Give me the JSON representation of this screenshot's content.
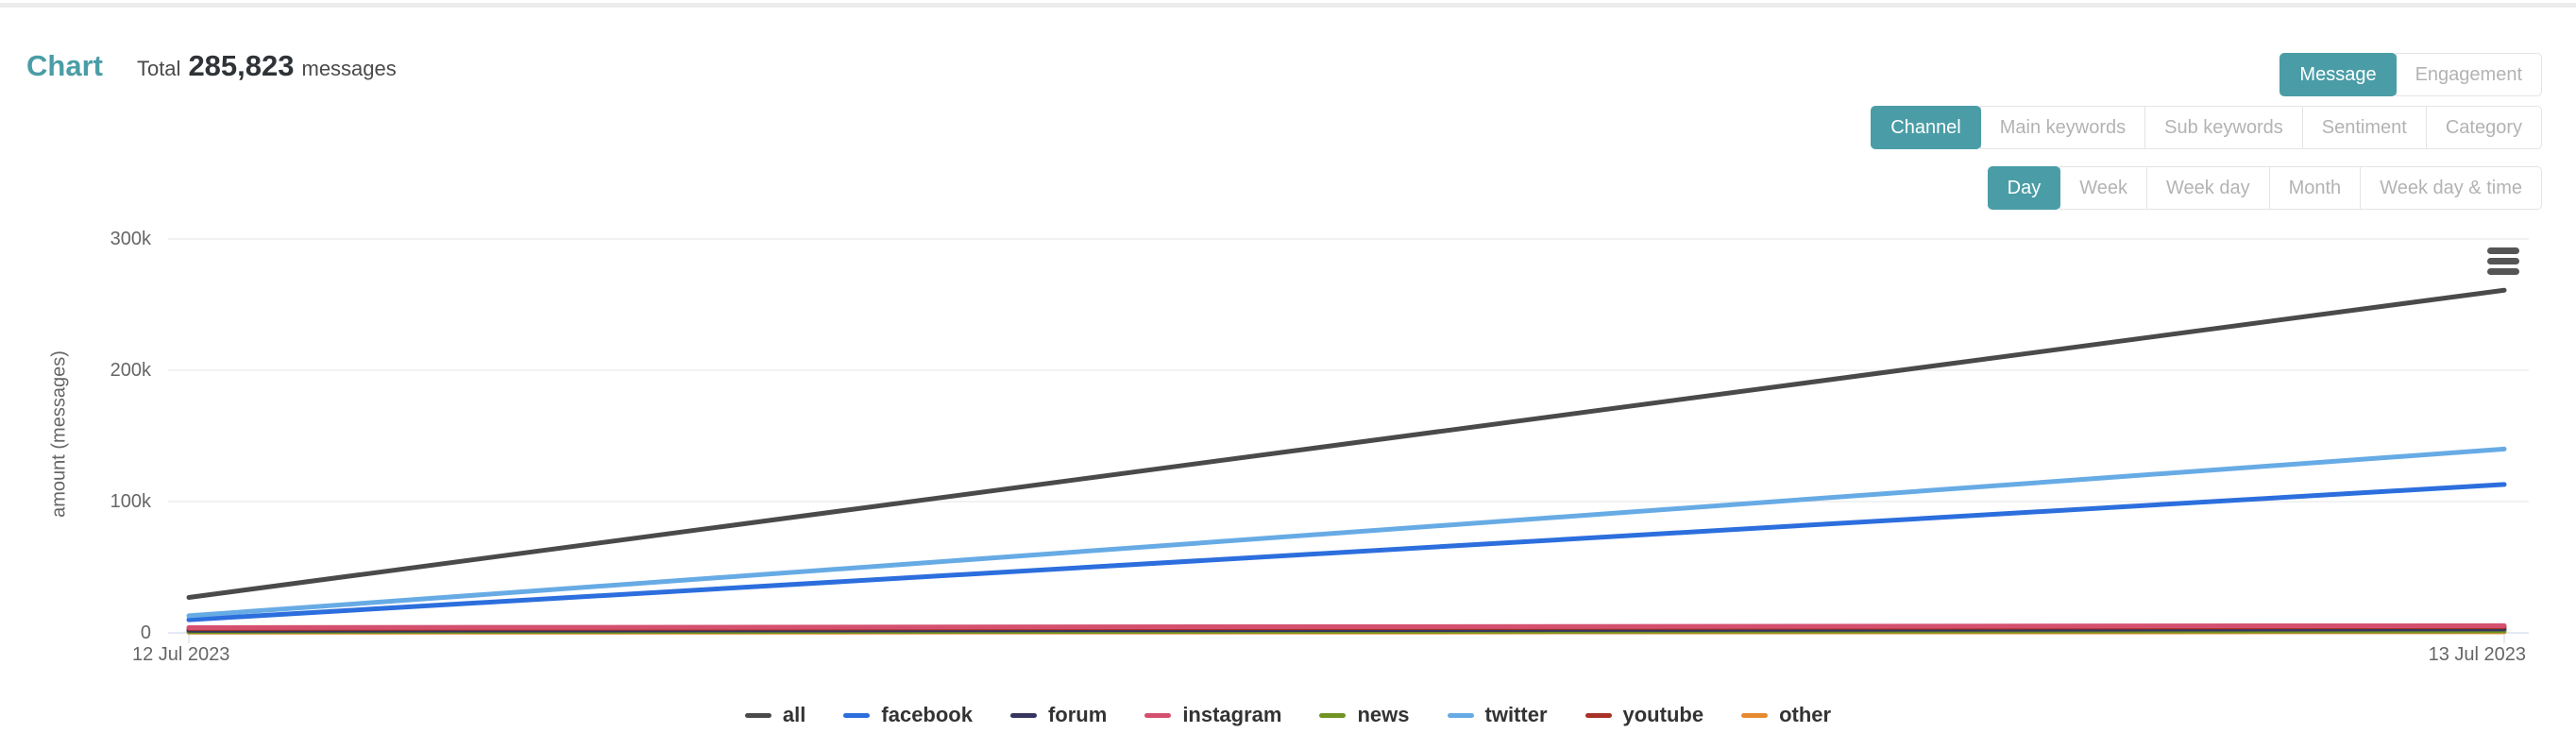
{
  "header": {
    "title": "Chart",
    "total_label": "Total",
    "total_value": "285,823",
    "total_unit": "messages"
  },
  "toolbar": {
    "metric_toggle": {
      "options": [
        {
          "label": "Message",
          "active": true
        },
        {
          "label": "Engagement",
          "active": false
        }
      ]
    },
    "dimension_toggle": {
      "options": [
        {
          "label": "Channel",
          "active": true
        },
        {
          "label": "Main keywords",
          "active": false
        },
        {
          "label": "Sub keywords",
          "active": false
        },
        {
          "label": "Sentiment",
          "active": false
        },
        {
          "label": "Category",
          "active": false
        }
      ]
    },
    "granularity_toggle": {
      "options": [
        {
          "label": "Day",
          "active": true
        },
        {
          "label": "Week",
          "active": false
        },
        {
          "label": "Week day",
          "active": false
        },
        {
          "label": "Month",
          "active": false
        },
        {
          "label": "Week day & time",
          "active": false
        }
      ]
    }
  },
  "colors": {
    "accent_teal": "#4a9da6",
    "grid_line": "#e6e6e6",
    "axis_line": "#ccd6eb",
    "tick_text": "#666666"
  },
  "chart_data": {
    "type": "line",
    "title": "",
    "xlabel": "",
    "ylabel": "amount (messages)",
    "x": [
      "12 Jul 2023",
      "13 Jul 2023"
    ],
    "ylim": [
      0,
      300000
    ],
    "yticks": [
      {
        "value": 0,
        "label": "0"
      },
      {
        "value": 100000,
        "label": "100k"
      },
      {
        "value": 200000,
        "label": "200k"
      },
      {
        "value": 300000,
        "label": "300k"
      }
    ],
    "grid": true,
    "legend_position": "bottom",
    "series": [
      {
        "name": "all",
        "color": "#4a4a4a",
        "values": [
          27000,
          261000
        ]
      },
      {
        "name": "facebook",
        "color": "#2c6edd",
        "values": [
          10000,
          113000
        ]
      },
      {
        "name": "forum",
        "color": "#35355f",
        "values": [
          2000,
          3000
        ]
      },
      {
        "name": "instagram",
        "color": "#d5506f",
        "values": [
          4000,
          5500
        ]
      },
      {
        "name": "news",
        "color": "#6f9422",
        "values": [
          1000,
          1500
        ]
      },
      {
        "name": "twitter",
        "color": "#67abe5",
        "values": [
          13000,
          140000
        ]
      },
      {
        "name": "youtube",
        "color": "#a93226",
        "values": [
          3300,
          4700
        ]
      },
      {
        "name": "other",
        "color": "#e58a2f",
        "values": [
          500,
          800
        ]
      }
    ]
  }
}
